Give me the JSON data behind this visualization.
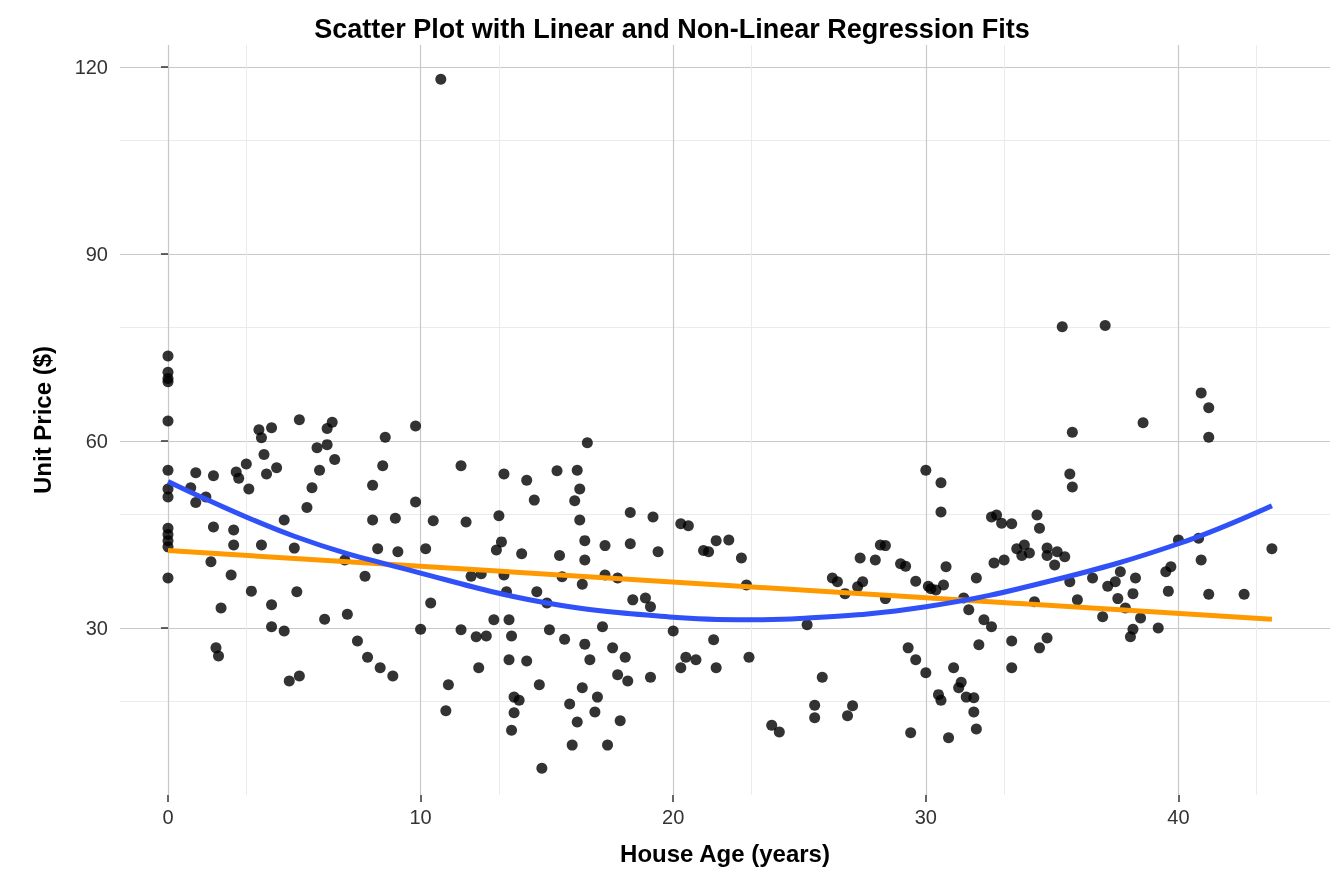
{
  "chart_data": {
    "type": "scatter",
    "title": "Scatter Plot with Linear and Non-Linear Regression Fits",
    "xlabel": "House Age (years)",
    "ylabel": "Unit Price ($)",
    "xlim": [
      -1.9,
      46
    ],
    "ylim": [
      3.2,
      123.5
    ],
    "xticks": [
      0,
      10,
      20,
      30,
      40
    ],
    "yticks": [
      30,
      60,
      90,
      120
    ],
    "grid": true,
    "series": [
      {
        "marker": "circle",
        "color": "#000000",
        "x": [
          0,
          0,
          0,
          0,
          0,
          0,
          0,
          0,
          0,
          0,
          0,
          0,
          0,
          1.1,
          0.9,
          1.1,
          1.8,
          1.5,
          1.8,
          1.7,
          1.9,
          2.0,
          2.1,
          2.5,
          2.6,
          2.6,
          2.7,
          2.8,
          3.1,
          3.2,
          3.3,
          3.7,
          3.6,
          3.7,
          3.8,
          3.9,
          4.1,
          4.1,
          4.3,
          4.1,
          4.6,
          4.6,
          4.8,
          5.0,
          5.2,
          5.1,
          5.2,
          5.5,
          5.7,
          5.9,
          6.0,
          6.2,
          6.3,
          6.5,
          6.6,
          6.3,
          7.0,
          7.1,
          7.5,
          7.8,
          7.9,
          8.1,
          8.1,
          8.3,
          8.4,
          8.6,
          8.5,
          8.9,
          9.0,
          9.1,
          9.8,
          9.8,
          10.0,
          10.2,
          10.4,
          10.5,
          10.8,
          11.0,
          11.1,
          11.6,
          11.6,
          11.8,
          12.0,
          12.2,
          12.3,
          12.4,
          12.6,
          12.9,
          13.0,
          13.2,
          13.3,
          13.4,
          13.1,
          13.3,
          13.5,
          13.6,
          13.5,
          13.7,
          13.7,
          13.6,
          13.9,
          14.0,
          14.2,
          14.2,
          14.5,
          14.6,
          14.7,
          15.0,
          14.8,
          15.1,
          15.4,
          15.5,
          15.6,
          15.7,
          15.9,
          16.0,
          16.1,
          16.2,
          16.3,
          16.3,
          16.5,
          16.5,
          16.4,
          16.5,
          16.4,
          16.2,
          16.6,
          16.7,
          16.9,
          17.0,
          17.2,
          17.3,
          17.3,
          17.4,
          17.6,
          17.8,
          17.8,
          18.1,
          18.2,
          18.3,
          18.3,
          18.4,
          17.9,
          18.9,
          19.2,
          19.1,
          19.4,
          19.1,
          20.0,
          20.3,
          20.6,
          20.3,
          20.5,
          20.9,
          21.2,
          21.4,
          21.7,
          21.7,
          21.6,
          22.2,
          22.7,
          23.0,
          22.9,
          23.9,
          24.2,
          25.3,
          25.6,
          25.6,
          25.9,
          26.3,
          26.5,
          26.8,
          26.9,
          27.1,
          27.3,
          27.5,
          27.4,
          28.0,
          28.2,
          28.4,
          28.4,
          29.0,
          29.2,
          29.3,
          29.6,
          29.6,
          29.4,
          30.0,
          30.0,
          30.1,
          30.2,
          30.4,
          30.5,
          30.6,
          30.6,
          30.6,
          30.7,
          30.8,
          30.9,
          31.1,
          31.3,
          31.4,
          31.5,
          31.7,
          31.6,
          31.9,
          32.0,
          32.0,
          32.1,
          31.9,
          32.3,
          32.6,
          32.8,
          32.6,
          32.7,
          33.0,
          33.1,
          33.4,
          33.4,
          33.4,
          33.6,
          33.8,
          33.9,
          34.1,
          34.3,
          34.4,
          34.5,
          34.5,
          34.8,
          34.8,
          35.1,
          34.8,
          35.2,
          35.4,
          35.5,
          35.7,
          35.8,
          35.8,
          35.7,
          36.0,
          36.6,
          37.0,
          37.1,
          37.2,
          37.5,
          37.6,
          37.7,
          37.9,
          38.1,
          38.2,
          38.2,
          38.3,
          38.5,
          38.6,
          39.2,
          39.5,
          39.6,
          39.7,
          40.0,
          40.8,
          40.9,
          40.9,
          41.2,
          41.2,
          41.2,
          42.6,
          43.7
        ],
        "values": [
          73.6,
          71,
          70,
          69.5,
          63.2,
          55.3,
          52.3,
          51,
          46,
          45,
          44,
          43,
          38,
          54.9,
          52.5,
          50.1,
          54.4,
          51,
          46.2,
          40.6,
          26.8,
          25.5,
          33.2,
          38.5,
          43.3,
          45.7,
          55,
          54,
          56.3,
          52.3,
          35.9,
          43.3,
          61.8,
          60.5,
          57.8,
          54.7,
          33.7,
          30.2,
          55.7,
          62.1,
          47.3,
          29.5,
          21.5,
          42.8,
          63.4,
          35.8,
          22.3,
          49.3,
          52.5,
          58.9,
          55.3,
          31.4,
          62,
          63,
          57,
          59.4,
          40.9,
          32.2,
          27.9,
          38.3,
          25.3,
          47.3,
          52.9,
          42.7,
          23.6,
          60.6,
          56,
          22.3,
          47.6,
          42.2,
          62.4,
          50.2,
          29.8,
          42.7,
          34,
          47.2,
          118,
          16.7,
          20.9,
          29.7,
          56,
          47,
          38.3,
          28.6,
          23.6,
          38.7,
          28.7,
          31.3,
          42.5,
          43.8,
          38.5,
          35.8,
          48,
          54.7,
          31.3,
          28.7,
          24.9,
          18.9,
          16.4,
          13.6,
          18.4,
          41.9,
          53.7,
          24.7,
          50.5,
          35.8,
          20.9,
          34,
          7.5,
          29.7,
          55.2,
          41.6,
          38.2,
          28.2,
          17.8,
          11.2,
          50.4,
          55.3,
          52.3,
          47.3,
          44,
          40.9,
          37,
          27.4,
          20.4,
          14.9,
          59.7,
          24.9,
          16.5,
          18.9,
          30.2,
          43.2,
          38.5,
          11.2,
          26.8,
          38,
          22.5,
          25.3,
          21.5,
          43.5,
          48.5,
          34.5,
          15.1,
          34.8,
          47.8,
          33.4,
          42.2,
          22.1,
          29.5,
          46.7,
          46.4,
          23.6,
          25.3,
          24.9,
          42.4,
          42.2,
          44,
          23.6,
          28.1,
          44.1,
          41.2,
          25.3,
          36.9,
          14.4,
          13.3,
          30.5,
          17.6,
          15.6,
          22.1,
          38,
          37.4,
          35.5,
          15.9,
          17.5,
          36.6,
          37.4,
          41.2,
          40.9,
          43.3,
          43.2,
          34.7,
          40.3,
          39.9,
          26.8,
          24.9,
          37.5,
          13.2,
          22.8,
          55.3,
          36.7,
          36.3,
          36.1,
          19.3,
          53.3,
          48.6,
          18.4,
          36.9,
          39.8,
          12.4,
          23.6,
          20.4,
          21.3,
          34.8,
          32.9,
          18.9,
          16.5,
          13.8,
          38,
          27.3,
          18.8,
          31.3,
          47.8,
          48.1,
          30.2,
          40.4,
          46.8,
          40.9,
          46.7,
          27.9,
          23.6,
          42.7,
          41.6,
          43.3,
          42,
          34.2,
          48.1,
          46,
          26.8,
          28.4,
          41.6,
          40.1,
          42.8,
          42.2,
          78.3,
          41.4,
          54.7,
          52.6,
          61.4,
          37.4,
          34.5,
          38,
          31.8,
          78.5,
          36.7,
          37.4,
          34.7,
          39,
          33.2,
          28.6,
          29.8,
          35.5,
          38,
          31.6,
          62.9,
          30,
          39,
          35.9,
          39.8,
          44.1,
          44.4,
          67.7,
          40.9,
          65.3,
          60.6,
          35.4,
          35.4,
          42.7
        ]
      },
      {
        "type": "line",
        "marker": "none",
        "color": "#ff9900",
        "x": [
          0,
          43.7
        ],
        "values": [
          42.4,
          31.4
        ]
      },
      {
        "type": "line",
        "marker": "none",
        "color": "#3050f8",
        "x": [
          0,
          5,
          10,
          15,
          20,
          23,
          25,
          30,
          35,
          40,
          43.7
        ],
        "values": [
          53.5,
          44.7,
          38.8,
          34.0,
          31.7,
          31.3,
          31.5,
          33.4,
          37.6,
          43.5,
          49.6
        ]
      }
    ]
  }
}
